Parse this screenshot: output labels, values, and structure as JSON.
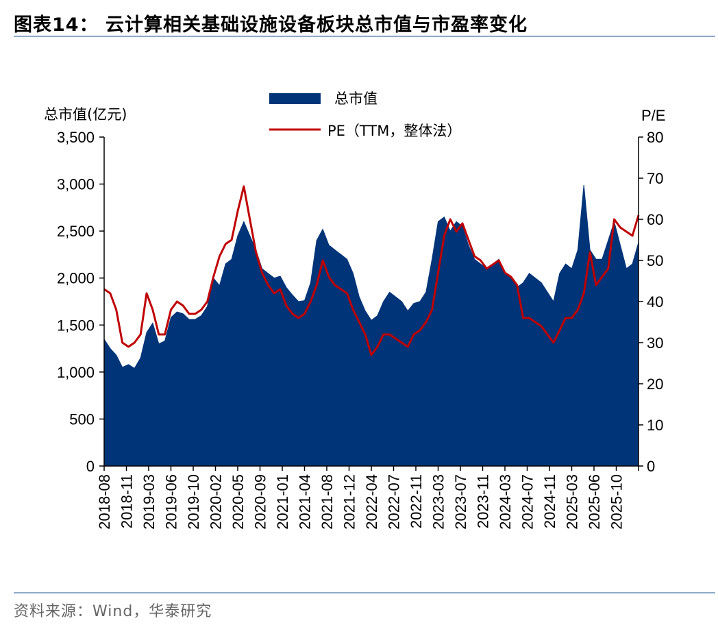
{
  "title": "图表14：  云计算相关基础设施设备板块总市值与市盈率变化",
  "source": "资料来源：Wind，华泰研究",
  "chart_data": {
    "type": "area",
    "title": "图表14：  云计算相关基础设施设备板块总市值与市盈率变化",
    "left_axis_label": "总市值(亿元)",
    "right_axis_label": "P/E",
    "left_ylim": [
      0,
      3500
    ],
    "right_ylim": [
      0,
      80
    ],
    "left_ticks": [
      "0",
      "500",
      "1,000",
      "1,500",
      "2,000",
      "2,500",
      "3,000",
      "3,500"
    ],
    "right_ticks": [
      "0",
      "10",
      "20",
      "30",
      "40",
      "50",
      "60",
      "70",
      "80"
    ],
    "x_tick_labels": [
      "2018-08",
      "2018-11",
      "2019-03",
      "2019-06",
      "2019-10",
      "2020-02",
      "2020-05",
      "2020-09",
      "2021-01",
      "2021-04",
      "2021-08",
      "2021-12",
      "2022-04",
      "2022-07",
      "2022-11",
      "2023-03",
      "2023-07",
      "2023-11",
      "2024-03",
      "2024-07",
      "2024-11",
      "2025-03",
      "2025-06",
      "2025-10"
    ],
    "legend_position": "top-center",
    "grid": false,
    "series": [
      {
        "name": "总市值",
        "kind": "area",
        "axis": "left",
        "color": "#003478",
        "x": [
          "2018-08",
          "2018-09",
          "2018-10",
          "2018-11",
          "2018-12",
          "2019-01",
          "2019-02",
          "2019-03",
          "2019-04",
          "2019-05",
          "2019-06",
          "2019-07",
          "2019-08",
          "2019-09",
          "2019-10",
          "2019-11",
          "2019-12",
          "2020-01",
          "2020-02",
          "2020-03",
          "2020-04",
          "2020-05",
          "2020-06",
          "2020-07",
          "2020-08",
          "2020-09",
          "2020-10",
          "2020-11",
          "2020-12",
          "2021-01",
          "2021-02",
          "2021-03",
          "2021-04",
          "2021-05",
          "2021-06",
          "2021-07",
          "2021-08",
          "2021-09",
          "2021-10",
          "2021-11",
          "2021-12",
          "2022-01",
          "2022-02",
          "2022-03",
          "2022-04",
          "2022-05",
          "2022-06",
          "2022-07",
          "2022-08",
          "2022-09",
          "2022-10",
          "2022-11",
          "2022-12",
          "2023-01",
          "2023-02",
          "2023-03",
          "2023-04",
          "2023-05",
          "2023-06",
          "2023-07",
          "2023-08",
          "2023-09",
          "2023-10",
          "2023-11",
          "2023-12",
          "2024-01",
          "2024-02",
          "2024-03",
          "2024-04",
          "2024-05",
          "2024-06",
          "2024-07",
          "2024-08",
          "2024-09",
          "2024-10",
          "2024-11",
          "2024-12",
          "2025-01",
          "2025-02",
          "2025-03",
          "2025-04",
          "2025-05",
          "2025-06",
          "2025-07",
          "2025-08",
          "2025-09",
          "2025-10",
          "2025-11",
          "2025-12"
        ],
        "values": [
          1350,
          1250,
          1180,
          1050,
          1080,
          1040,
          1150,
          1420,
          1520,
          1300,
          1330,
          1580,
          1640,
          1620,
          1560,
          1560,
          1600,
          1700,
          2000,
          1920,
          2150,
          2200,
          2450,
          2600,
          2450,
          2300,
          2100,
          2050,
          2000,
          2020,
          1900,
          1820,
          1750,
          1760,
          1950,
          2400,
          2520,
          2350,
          2300,
          2250,
          2200,
          2050,
          1800,
          1650,
          1550,
          1600,
          1750,
          1850,
          1800,
          1750,
          1650,
          1730,
          1750,
          1850,
          2200,
          2600,
          2650,
          2500,
          2600,
          2550,
          2350,
          2200,
          2150,
          2100,
          2150,
          2200,
          2050,
          2000,
          1900,
          1950,
          2050,
          2000,
          1950,
          1850,
          1750,
          2050,
          2150,
          2100,
          2300,
          2990,
          2300,
          2200,
          2200,
          2400,
          2600,
          2350,
          2100,
          2150,
          2380
        ]
      },
      {
        "name": "PE（TTM，整体法）",
        "kind": "line",
        "axis": "right",
        "color": "#c00000",
        "x": [
          "2018-08",
          "2018-09",
          "2018-10",
          "2018-11",
          "2018-12",
          "2019-01",
          "2019-02",
          "2019-03",
          "2019-04",
          "2019-05",
          "2019-06",
          "2019-07",
          "2019-08",
          "2019-09",
          "2019-10",
          "2019-11",
          "2019-12",
          "2020-01",
          "2020-02",
          "2020-03",
          "2020-04",
          "2020-05",
          "2020-06",
          "2020-07",
          "2020-08",
          "2020-09",
          "2020-10",
          "2020-11",
          "2020-12",
          "2021-01",
          "2021-02",
          "2021-03",
          "2021-04",
          "2021-05",
          "2021-06",
          "2021-07",
          "2021-08",
          "2021-09",
          "2021-10",
          "2021-11",
          "2021-12",
          "2022-01",
          "2022-02",
          "2022-03",
          "2022-04",
          "2022-05",
          "2022-06",
          "2022-07",
          "2022-08",
          "2022-09",
          "2022-10",
          "2022-11",
          "2022-12",
          "2023-01",
          "2023-02",
          "2023-03",
          "2023-04",
          "2023-05",
          "2023-06",
          "2023-07",
          "2023-08",
          "2023-09",
          "2023-10",
          "2023-11",
          "2023-12",
          "2024-01",
          "2024-02",
          "2024-03",
          "2024-04",
          "2024-05",
          "2024-06",
          "2024-07",
          "2024-08",
          "2024-09",
          "2024-10",
          "2024-11",
          "2024-12",
          "2025-01",
          "2025-02",
          "2025-03",
          "2025-04",
          "2025-05",
          "2025-06",
          "2025-07",
          "2025-08",
          "2025-09",
          "2025-10",
          "2025-11",
          "2025-12"
        ],
        "values": [
          43,
          42,
          38,
          30,
          29,
          30,
          32,
          42,
          38,
          32,
          32,
          38,
          40,
          39,
          37,
          37,
          38,
          40,
          46,
          51,
          54,
          55,
          62,
          68,
          60,
          52,
          47,
          44,
          42,
          43,
          39,
          37,
          36,
          37,
          40,
          44,
          50,
          46,
          44,
          43,
          42,
          38,
          35,
          32,
          27,
          29,
          32,
          32,
          31,
          30,
          29,
          32,
          33,
          35,
          38,
          47,
          56,
          60,
          57,
          59,
          55,
          51,
          50,
          48,
          49,
          50,
          47,
          46,
          44,
          36,
          36,
          35,
          34,
          32,
          30,
          33,
          36,
          36,
          38,
          42,
          52,
          44,
          46,
          48,
          60,
          58,
          57,
          56,
          61
        ]
      }
    ]
  }
}
